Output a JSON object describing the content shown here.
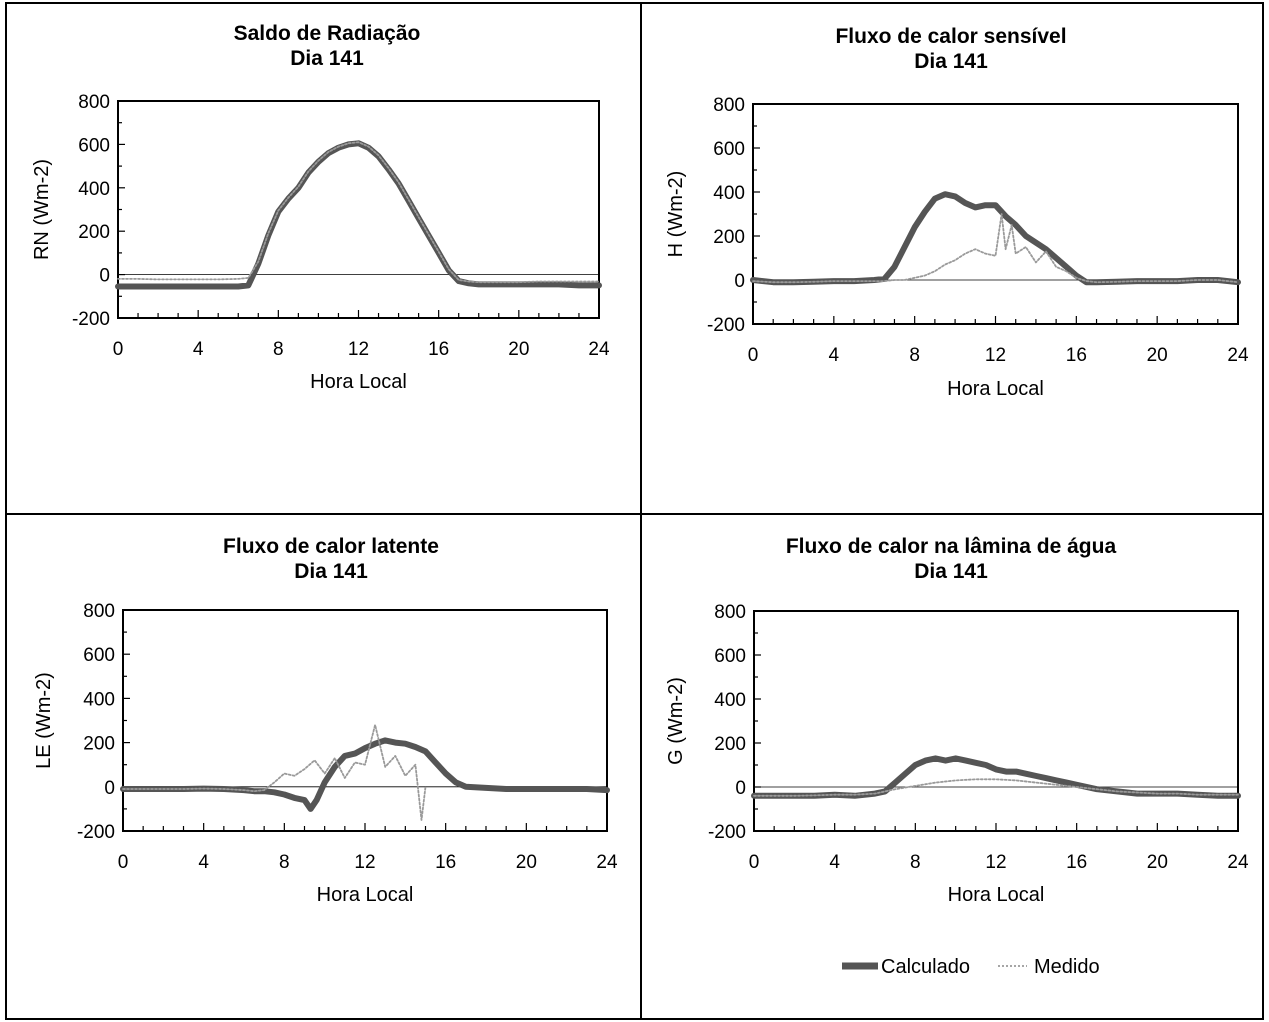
{
  "figure": {
    "legend": {
      "calc_label": "Calculado",
      "med_label": "Medido",
      "placement": "bottom-right"
    },
    "colors": {
      "calculated": "#555555",
      "measured": "#9a9a9a",
      "frame": "#000000"
    }
  },
  "chart_data": [
    {
      "type": "line",
      "title": "Saldo de Radiação",
      "subtitle": "Dia 141",
      "xlabel": "Hora Local",
      "ylabel": "RN (Wm-2)",
      "xlim": [
        0,
        24
      ],
      "ylim": [
        -200,
        800
      ],
      "xticks": [
        "0",
        "4",
        "8",
        "12",
        "16",
        "20",
        "24"
      ],
      "yticks": [
        "800",
        "600",
        "400",
        "200",
        "0",
        "-200"
      ],
      "grid": false,
      "series": [
        {
          "name": "Calculado",
          "x": [
            0,
            1,
            2,
            3,
            4,
            5,
            6,
            6.5,
            7,
            7.5,
            8,
            8.5,
            9,
            9.5,
            10,
            10.5,
            11,
            11.5,
            12,
            12.5,
            13,
            13.5,
            14,
            14.5,
            15,
            15.5,
            16,
            16.5,
            17,
            17.5,
            18,
            19,
            20,
            21,
            22,
            23,
            24
          ],
          "y": [
            -55,
            -55,
            -55,
            -55,
            -55,
            -55,
            -55,
            -50,
            50,
            180,
            290,
            350,
            400,
            470,
            520,
            560,
            585,
            600,
            605,
            585,
            545,
            485,
            420,
            340,
            260,
            180,
            100,
            20,
            -30,
            -40,
            -45,
            -45,
            -45,
            -45,
            -45,
            -50,
            -50
          ]
        },
        {
          "name": "Medido",
          "x": [
            0,
            1,
            2,
            3,
            4,
            5,
            6,
            6.5,
            7,
            7.5,
            8,
            8.5,
            9,
            9.5,
            10,
            10.5,
            11,
            11.5,
            12,
            12.5,
            13,
            13.5,
            14,
            14.5,
            15,
            15.5,
            16,
            16.5,
            17,
            17.5,
            18,
            19,
            20,
            21,
            22,
            23,
            24
          ],
          "y": [
            -20,
            -20,
            -22,
            -22,
            -22,
            -22,
            -20,
            -15,
            60,
            190,
            295,
            355,
            405,
            475,
            525,
            565,
            590,
            605,
            610,
            590,
            550,
            490,
            425,
            345,
            265,
            185,
            105,
            25,
            -25,
            -32,
            -35,
            -35,
            -35,
            -32,
            -32,
            -32,
            -32
          ]
        }
      ]
    },
    {
      "type": "line",
      "title": "Fluxo de calor sensível",
      "subtitle": "Dia 141",
      "xlabel": "Hora Local",
      "ylabel": "H (Wm-2)",
      "xlim": [
        0,
        24
      ],
      "ylim": [
        -200,
        800
      ],
      "xticks": [
        "0",
        "4",
        "8",
        "12",
        "16",
        "20",
        "24"
      ],
      "yticks": [
        "800",
        "600",
        "400",
        "200",
        "0",
        "-200"
      ],
      "grid": false,
      "series": [
        {
          "name": "Calculado",
          "x": [
            0,
            1,
            2,
            3,
            4,
            5,
            6,
            6.5,
            7,
            7.5,
            8,
            8.5,
            9,
            9.5,
            10,
            10.5,
            11,
            11.5,
            12,
            12.5,
            13,
            13.5,
            14,
            14.5,
            15,
            15.5,
            16,
            16.5,
            17,
            18,
            19,
            20,
            21,
            22,
            23,
            24
          ],
          "y": [
            0,
            -10,
            -10,
            -8,
            -5,
            -5,
            0,
            5,
            60,
            150,
            240,
            310,
            370,
            390,
            380,
            350,
            330,
            340,
            340,
            290,
            250,
            200,
            170,
            140,
            100,
            60,
            20,
            -10,
            -10,
            -8,
            -5,
            -5,
            -5,
            0,
            0,
            -10
          ]
        },
        {
          "name": "Medido",
          "x": [
            0,
            1,
            2,
            3,
            4,
            5,
            6,
            6.5,
            7,
            7.5,
            8,
            8.5,
            9,
            9.5,
            10,
            10.5,
            11,
            11.5,
            12,
            12.3,
            12.5,
            12.8,
            13,
            13.5,
            14,
            14.5,
            15,
            15.5,
            16,
            16.5,
            17,
            18,
            19,
            20,
            21,
            22,
            23,
            24
          ],
          "y": [
            -5,
            -10,
            -10,
            -8,
            -5,
            -5,
            -5,
            -5,
            0,
            0,
            10,
            20,
            40,
            70,
            90,
            120,
            140,
            120,
            110,
            300,
            140,
            250,
            120,
            150,
            80,
            130,
            60,
            40,
            10,
            -5,
            -10,
            -8,
            -5,
            -5,
            -5,
            0,
            0,
            -10
          ]
        }
      ]
    },
    {
      "type": "line",
      "title": "Fluxo de calor latente",
      "subtitle": "Dia 141",
      "xlabel": "Hora Local",
      "ylabel": "LE (Wm-2)",
      "xlim": [
        0,
        24
      ],
      "ylim": [
        -200,
        800
      ],
      "xticks": [
        "0",
        "4",
        "8",
        "12",
        "16",
        "20",
        "24"
      ],
      "yticks": [
        "800",
        "600",
        "400",
        "200",
        "0",
        "-200"
      ],
      "grid": false,
      "series": [
        {
          "name": "Calculado",
          "x": [
            0,
            1,
            2,
            3,
            4,
            5,
            6,
            6.5,
            7,
            7.5,
            8,
            8.5,
            9,
            9.3,
            9.6,
            10,
            10.5,
            11,
            11.5,
            12,
            12.5,
            13,
            13.5,
            14,
            14.5,
            15,
            15.5,
            16,
            16.5,
            17,
            18,
            19,
            20,
            21,
            22,
            23,
            24
          ],
          "y": [
            -10,
            -10,
            -10,
            -10,
            -8,
            -10,
            -15,
            -20,
            -20,
            -25,
            -35,
            -50,
            -60,
            -100,
            -60,
            20,
            90,
            140,
            150,
            175,
            195,
            210,
            200,
            195,
            180,
            160,
            110,
            60,
            20,
            0,
            -5,
            -10,
            -10,
            -10,
            -10,
            -10,
            -15
          ]
        },
        {
          "name": "Medido",
          "x": [
            0,
            1,
            2,
            3,
            4,
            5,
            6,
            6.5,
            7,
            7.5,
            8,
            8.5,
            9,
            9.5,
            10,
            10.5,
            11,
            11.5,
            12,
            12.5,
            13,
            13.5,
            14,
            14.5,
            14.8,
            15
          ],
          "y": [
            -10,
            -10,
            -10,
            -10,
            -8,
            -10,
            -15,
            -20,
            -15,
            20,
            60,
            50,
            80,
            120,
            60,
            130,
            40,
            110,
            100,
            280,
            90,
            140,
            50,
            100,
            -150,
            0
          ]
        }
      ]
    },
    {
      "type": "line",
      "title": "Fluxo de calor na lâmina de água",
      "subtitle": "Dia 141",
      "xlabel": "Hora Local",
      "ylabel": "G (Wm-2)",
      "xlim": [
        0,
        24
      ],
      "ylim": [
        -200,
        800
      ],
      "xticks": [
        "0",
        "4",
        "8",
        "12",
        "16",
        "20",
        "24"
      ],
      "yticks": [
        "800",
        "600",
        "400",
        "200",
        "0",
        "-200"
      ],
      "grid": false,
      "series": [
        {
          "name": "Calculado",
          "x": [
            0,
            1,
            2,
            3,
            4,
            5,
            6,
            6.5,
            7,
            7.5,
            8,
            8.5,
            9,
            9.5,
            10,
            10.5,
            11,
            11.5,
            12,
            12.5,
            13,
            13.5,
            14,
            14.5,
            15,
            15.5,
            16,
            17,
            18,
            19,
            20,
            21,
            22,
            23,
            24
          ],
          "y": [
            -40,
            -40,
            -40,
            -40,
            -35,
            -40,
            -30,
            -20,
            20,
            60,
            100,
            120,
            130,
            120,
            130,
            120,
            110,
            100,
            80,
            70,
            70,
            60,
            50,
            40,
            30,
            20,
            10,
            -10,
            -20,
            -30,
            -30,
            -30,
            -35,
            -40,
            -40
          ]
        },
        {
          "name": "Medido",
          "x": [
            0,
            1,
            2,
            3,
            4,
            5,
            6,
            7,
            8,
            9,
            10,
            11,
            12,
            13,
            14,
            15,
            16,
            17,
            18,
            19,
            20,
            21,
            22,
            23,
            24
          ],
          "y": [
            -40,
            -40,
            -40,
            -38,
            -35,
            -35,
            -30,
            -10,
            5,
            20,
            30,
            35,
            35,
            30,
            20,
            10,
            0,
            -10,
            -20,
            -25,
            -30,
            -30,
            -35,
            -35,
            -35
          ]
        }
      ]
    }
  ]
}
